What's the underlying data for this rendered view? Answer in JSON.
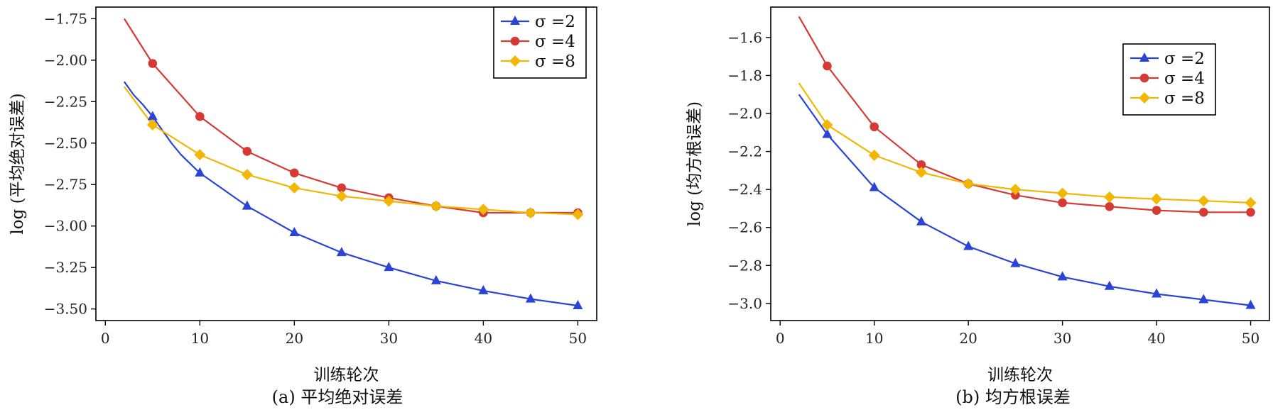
{
  "chart_data": [
    {
      "type": "line",
      "caption": "(a) 平均绝对误差",
      "xlabel": "训练轮次",
      "ylabel": "log (平均绝对误差)",
      "xlim": [
        -1,
        52
      ],
      "ylim": [
        -3.57,
        -1.68
      ],
      "xticks": [
        0,
        10,
        20,
        30,
        40,
        50
      ],
      "yticks": [
        -1.75,
        -2.0,
        -2.25,
        -2.5,
        -2.75,
        -3.0,
        -3.25,
        -3.5
      ],
      "ytick_labels": [
        "−1.75",
        "−2.00",
        "−2.25",
        "−2.50",
        "−2.75",
        "−3.00",
        "−3.25",
        "−3.50"
      ],
      "grid": false,
      "legend_position": "top-right",
      "series": [
        {
          "name": "σ =2",
          "color": "#2a45d6",
          "marker": "triangle",
          "x": [
            2,
            3,
            4,
            5,
            6,
            7,
            8,
            10,
            15,
            20,
            25,
            30,
            35,
            40,
            45,
            50
          ],
          "y": [
            -2.13,
            -2.21,
            -2.27,
            -2.34,
            -2.42,
            -2.5,
            -2.57,
            -2.68,
            -2.88,
            -3.04,
            -3.16,
            -3.25,
            -3.33,
            -3.39,
            -3.44,
            -3.48
          ],
          "marker_x": [
            5,
            10,
            15,
            20,
            25,
            30,
            35,
            40,
            45,
            50
          ],
          "marker_y": [
            -2.34,
            -2.68,
            -2.88,
            -3.04,
            -3.16,
            -3.25,
            -3.33,
            -3.39,
            -3.44,
            -3.48
          ]
        },
        {
          "name": "σ =4",
          "color": "#d63a35",
          "marker": "circle",
          "x": [
            2,
            5,
            10,
            15,
            20,
            25,
            30,
            35,
            40,
            45,
            50
          ],
          "y": [
            -1.75,
            -2.02,
            -2.34,
            -2.55,
            -2.68,
            -2.77,
            -2.83,
            -2.88,
            -2.92,
            -2.92,
            -2.92
          ],
          "marker_x": [
            5,
            10,
            15,
            20,
            25,
            30,
            35,
            40,
            45,
            50
          ],
          "marker_y": [
            -2.02,
            -2.34,
            -2.55,
            -2.68,
            -2.77,
            -2.83,
            -2.88,
            -2.92,
            -2.92,
            -2.92
          ]
        },
        {
          "name": "σ =8",
          "color": "#f2b705",
          "marker": "diamond",
          "x": [
            2,
            5,
            10,
            15,
            20,
            25,
            30,
            35,
            40,
            45,
            50
          ],
          "y": [
            -2.16,
            -2.39,
            -2.57,
            -2.69,
            -2.77,
            -2.82,
            -2.85,
            -2.88,
            -2.9,
            -2.92,
            -2.93
          ],
          "marker_x": [
            5,
            10,
            15,
            20,
            25,
            30,
            35,
            40,
            45,
            50
          ],
          "marker_y": [
            -2.39,
            -2.57,
            -2.69,
            -2.77,
            -2.82,
            -2.85,
            -2.88,
            -2.9,
            -2.92,
            -2.93
          ]
        }
      ]
    },
    {
      "type": "line",
      "caption": "(b) 均方根误差",
      "xlabel": "训练轮次",
      "ylabel": "log (均方根误差)",
      "xlim": [
        -1,
        52
      ],
      "ylim": [
        -3.09,
        -1.44
      ],
      "xticks": [
        0,
        10,
        20,
        30,
        40,
        50
      ],
      "yticks": [
        -1.6,
        -1.8,
        -2.0,
        -2.2,
        -2.4,
        -2.6,
        -2.8,
        -3.0
      ],
      "ytick_labels": [
        "−1.6",
        "−1.8",
        "−2.0",
        "−2.2",
        "−2.4",
        "−2.6",
        "−2.8",
        "−3.0"
      ],
      "grid": false,
      "legend_position": "top-right",
      "series": [
        {
          "name": "σ =2",
          "color": "#2a45d6",
          "marker": "triangle",
          "x": [
            2,
            5,
            10,
            15,
            20,
            25,
            30,
            35,
            40,
            45,
            50
          ],
          "y": [
            -1.9,
            -2.11,
            -2.39,
            -2.57,
            -2.7,
            -2.79,
            -2.86,
            -2.91,
            -2.95,
            -2.98,
            -3.01
          ],
          "marker_x": [
            5,
            10,
            15,
            20,
            25,
            30,
            35,
            40,
            45,
            50
          ],
          "marker_y": [
            -2.11,
            -2.39,
            -2.57,
            -2.7,
            -2.79,
            -2.86,
            -2.91,
            -2.95,
            -2.98,
            -3.01
          ]
        },
        {
          "name": "σ =4",
          "color": "#d63a35",
          "marker": "circle",
          "x": [
            2,
            5,
            10,
            15,
            20,
            25,
            30,
            35,
            40,
            45,
            50
          ],
          "y": [
            -1.49,
            -1.75,
            -2.07,
            -2.27,
            -2.37,
            -2.43,
            -2.47,
            -2.49,
            -2.51,
            -2.52,
            -2.52
          ],
          "marker_x": [
            5,
            10,
            15,
            20,
            25,
            30,
            35,
            40,
            45,
            50
          ],
          "marker_y": [
            -1.75,
            -2.07,
            -2.27,
            -2.37,
            -2.43,
            -2.47,
            -2.49,
            -2.51,
            -2.52,
            -2.52
          ]
        },
        {
          "name": "σ =8",
          "color": "#f2b705",
          "marker": "diamond",
          "x": [
            2,
            5,
            10,
            15,
            20,
            25,
            30,
            35,
            40,
            45,
            50
          ],
          "y": [
            -1.84,
            -2.06,
            -2.22,
            -2.31,
            -2.37,
            -2.4,
            -2.42,
            -2.44,
            -2.45,
            -2.46,
            -2.47
          ],
          "marker_x": [
            5,
            10,
            15,
            20,
            25,
            30,
            35,
            40,
            45,
            50
          ],
          "marker_y": [
            -2.06,
            -2.22,
            -2.31,
            -2.37,
            -2.4,
            -2.42,
            -2.44,
            -2.45,
            -2.46,
            -2.47
          ]
        }
      ]
    }
  ]
}
